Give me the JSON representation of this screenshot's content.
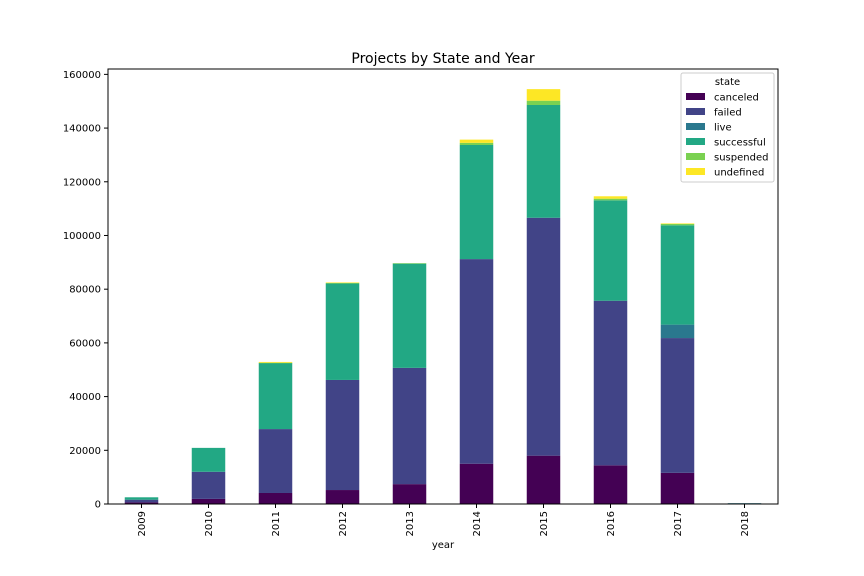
{
  "chart_data": {
    "type": "bar",
    "stacked": true,
    "title": "Projects by State and Year",
    "xlabel": "year",
    "ylabel": "",
    "ylim": [
      0,
      162000
    ],
    "yticks": [
      0,
      20000,
      40000,
      60000,
      80000,
      100000,
      120000,
      140000,
      160000
    ],
    "categories": [
      "2009",
      "2010",
      "2011",
      "2012",
      "2013",
      "2014",
      "2015",
      "2016",
      "2017",
      "2018"
    ],
    "legend": {
      "title": "state",
      "placement": "top-right"
    },
    "series": [
      {
        "name": "canceled",
        "color": "#440154",
        "values": [
          600,
          1900,
          4100,
          5200,
          7400,
          15000,
          18000,
          14400,
          11600,
          0
        ]
      },
      {
        "name": "failed",
        "color": "#414487",
        "values": [
          1000,
          10100,
          23800,
          41000,
          43300,
          76200,
          88600,
          61300,
          50200,
          0
        ]
      },
      {
        "name": "live",
        "color": "#2a788e",
        "values": [
          0,
          0,
          0,
          0,
          0,
          0,
          0,
          0,
          5000,
          300
        ]
      },
      {
        "name": "successful",
        "color": "#22a884",
        "values": [
          900,
          8900,
          24600,
          35900,
          38800,
          42500,
          42000,
          37400,
          37000,
          0
        ]
      },
      {
        "name": "suspended",
        "color": "#7ad151",
        "values": [
          0,
          0,
          100,
          200,
          200,
          800,
          1600,
          600,
          500,
          0
        ]
      },
      {
        "name": "undefined",
        "color": "#fde725",
        "values": [
          0,
          0,
          300,
          200,
          0,
          1200,
          4300,
          900,
          200,
          0
        ]
      }
    ]
  }
}
